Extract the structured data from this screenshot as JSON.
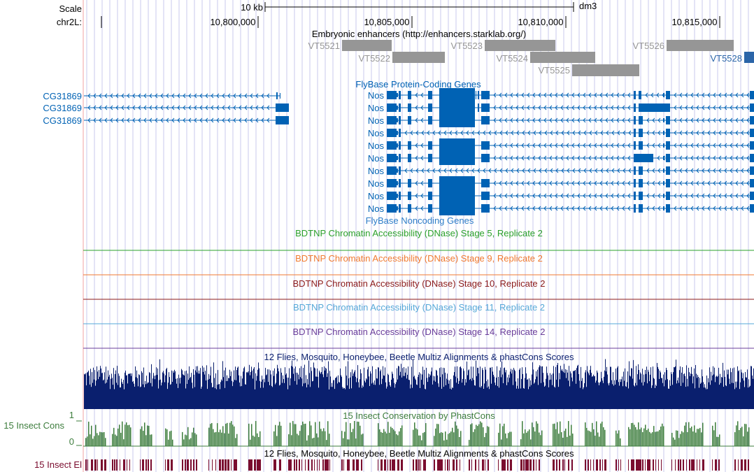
{
  "ruler": {
    "scale_label": "Scale",
    "scale_bar_label": "10 kb",
    "assembly": "dm3",
    "chrom_label": "chr2L:",
    "ticks": [
      "10,800,000",
      "10,805,000",
      "10,810,000",
      "10,815,000"
    ]
  },
  "tracks": {
    "enhancers_title": "Embryonic enhancers (http://enhancers.starklab.org/)",
    "enhancers": [
      "VT5521",
      "VT5522",
      "VT5523",
      "VT5524",
      "VT5525",
      "VT5526",
      "VT5528"
    ],
    "protein_coding_title": "FlyBase Protein-Coding Genes",
    "left_gene": "CG31869",
    "right_gene": "Nos",
    "noncoding_title": "FlyBase Noncoding Genes",
    "dnase_titles": [
      "BDTNP Chromatin Accessibility (DNase) Stage 5, Replicate 2",
      "BDTNP Chromatin Accessibility (DNase) Stage 9, Replicate 2",
      "BDTNP Chromatin Accessibility (DNase) Stage 10, Replicate 2",
      "BDTNP Chromatin Accessibility (DNase) Stage 11, Replicate 2",
      "BDTNP Chromatin Accessibility (DNase) Stage 14, Replicate 2"
    ],
    "multiz_title": "12 Flies, Mosquito, Honeybee, Beetle Multiz Alignments & phastCons Scores",
    "cons_title": "15 Insect Conservation by PhastCons",
    "cons_side_label": "15 Insect Cons",
    "cons_max": "1",
    "cons_min": "0",
    "el_title": "12 Flies, Mosquito, Honeybee, Beetle Multiz Alignments & phastCons Scores",
    "el_side_label": "15 Insect El"
  },
  "colors": {
    "gene_blue": "#0062b4",
    "enhancer_gray": "#969696",
    "enhancer_highlight": "#2b65a8",
    "dnase": [
      "#2ba02b",
      "#f07a30",
      "#8b1a1a",
      "#56a8d8",
      "#6a3d9a"
    ],
    "multiz": "#0a1f6e",
    "cons": "#3d7d3d",
    "elements": "#7a0c2e",
    "guide": "#c8c8ee",
    "left_margin_line": "#f0a0a0"
  }
}
